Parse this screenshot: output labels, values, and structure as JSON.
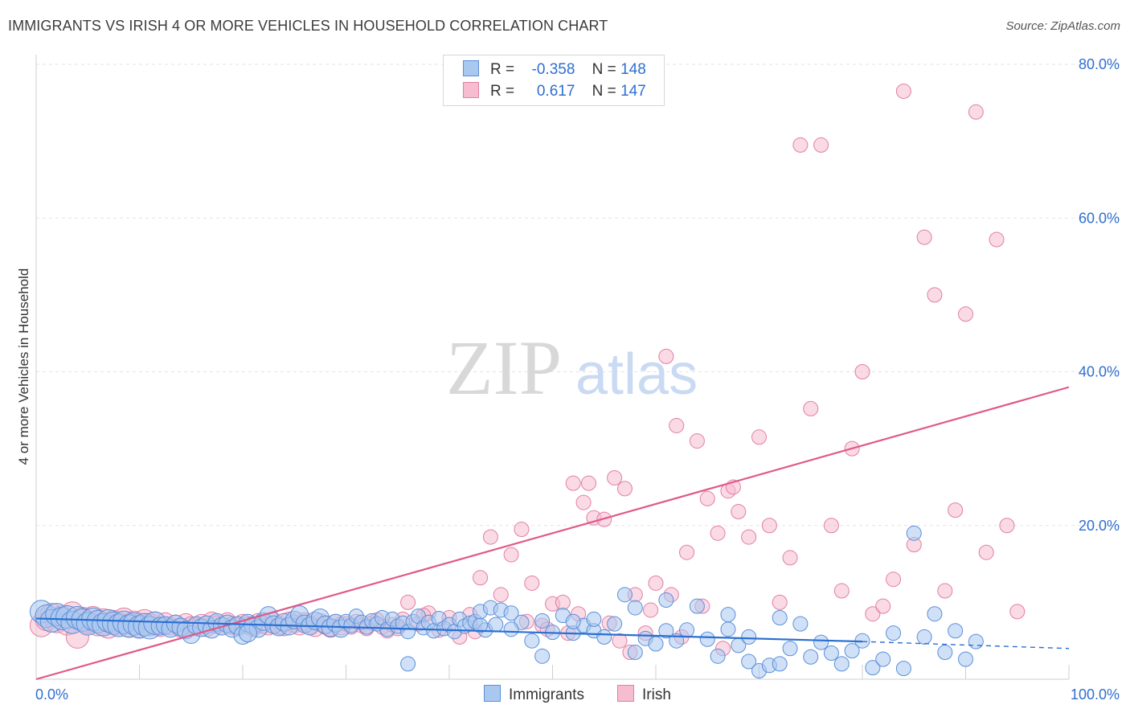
{
  "title": "IMMIGRANTS VS IRISH 4 OR MORE VEHICLES IN HOUSEHOLD CORRELATION CHART",
  "source": "Source: ZipAtlas.com",
  "watermark": {
    "zip": "ZIP",
    "atlas": "atlas"
  },
  "legend": {
    "rows": [
      {
        "r_label": "R =",
        "r_value": "-0.358",
        "n_label": "N =",
        "n_value": "148"
      },
      {
        "r_label": "R =",
        "r_value": "0.617",
        "n_label": "N =",
        "n_value": "147"
      }
    ]
  },
  "bottom_legend": {
    "immigrants": "Immigrants",
    "irish": "Irish"
  },
  "colors": {
    "immigrants_fill": "#a9c8f0",
    "immigrants_stroke": "#5b8fd8",
    "immigrants_line": "#2a6fd0",
    "irish_fill": "#f6bcd0",
    "irish_stroke": "#e27fa3",
    "irish_line": "#e0588a",
    "tick": "#2f6fd0",
    "grid": "#e3e3e3"
  },
  "chart_data": {
    "type": "scatter",
    "title": "IMMIGRANTS VS IRISH 4 OR MORE VEHICLES IN HOUSEHOLD CORRELATION CHART",
    "xlabel": "",
    "ylabel": "4 or more Vehicles in Household",
    "xlim": [
      0,
      100
    ],
    "ylim": [
      0,
      80
    ],
    "x_tick_labels": [
      "0.0%",
      "100.0%"
    ],
    "y_ticks": [
      20,
      40,
      60,
      80
    ],
    "y_tick_labels": [
      "20.0%",
      "40.0%",
      "60.0%",
      "80.0%"
    ],
    "grid": true,
    "series": [
      {
        "name": "Immigrants",
        "r": -0.358,
        "n": 148,
        "trend": {
          "x0": 0,
          "y0": 7.9,
          "x1": 80,
          "y1": 4.9,
          "dashed_to_x": 100,
          "dashed_to_y": 4.0
        },
        "points": [
          [
            0.5,
            8.8
          ],
          [
            1,
            8.2
          ],
          [
            1.5,
            7.6
          ],
          [
            2,
            8.4
          ],
          [
            2.5,
            7.9
          ],
          [
            3,
            8.1
          ],
          [
            3.5,
            7.4
          ],
          [
            4,
            8.0
          ],
          [
            4.5,
            7.7
          ],
          [
            5,
            7.2
          ],
          [
            5.5,
            7.8
          ],
          [
            6,
            7.5
          ],
          [
            6.5,
            7.1
          ],
          [
            7,
            7.6
          ],
          [
            7.5,
            7.3
          ],
          [
            8,
            7.0
          ],
          [
            8.5,
            7.4
          ],
          [
            9,
            6.9
          ],
          [
            9.5,
            7.2
          ],
          [
            10,
            6.8
          ],
          [
            10.5,
            7.1
          ],
          [
            11,
            6.7
          ],
          [
            11.5,
            7.3
          ],
          [
            12,
            6.9
          ],
          [
            12.5,
            7.0
          ],
          [
            13,
            6.6
          ],
          [
            13.5,
            7.2
          ],
          [
            14,
            6.8
          ],
          [
            14.5,
            6.4
          ],
          [
            15,
            5.8
          ],
          [
            15.5,
            7.0
          ],
          [
            16,
            6.7
          ],
          [
            16.5,
            7.1
          ],
          [
            17,
            6.5
          ],
          [
            17.5,
            7.4
          ],
          [
            18,
            6.9
          ],
          [
            18.5,
            7.2
          ],
          [
            19,
            6.6
          ],
          [
            19.5,
            7.0
          ],
          [
            20,
            5.7
          ],
          [
            20.5,
            7.3
          ],
          [
            21,
            7.0
          ],
          [
            21.5,
            6.6
          ],
          [
            22,
            7.5
          ],
          [
            22.5,
            8.3
          ],
          [
            23,
            7.1
          ],
          [
            23.5,
            6.8
          ],
          [
            24,
            7.4
          ],
          [
            24.5,
            6.9
          ],
          [
            25,
            7.7
          ],
          [
            25.5,
            8.4
          ],
          [
            26,
            7.2
          ],
          [
            26.5,
            6.9
          ],
          [
            27,
            7.6
          ],
          [
            27.5,
            8.0
          ],
          [
            28,
            7.1
          ],
          [
            28.5,
            6.7
          ],
          [
            29,
            7.3
          ],
          [
            29.5,
            6.6
          ],
          [
            30,
            7.5
          ],
          [
            30.5,
            7.0
          ],
          [
            31,
            8.2
          ],
          [
            31.5,
            7.4
          ],
          [
            32,
            6.8
          ],
          [
            32.5,
            7.6
          ],
          [
            33,
            7.2
          ],
          [
            33.5,
            8.0
          ],
          [
            34,
            6.5
          ],
          [
            34.5,
            7.8
          ],
          [
            35,
            6.9
          ],
          [
            35.5,
            7.3
          ],
          [
            36,
            6.2
          ],
          [
            36.5,
            7.5
          ],
          [
            37,
            8.2
          ],
          [
            37.5,
            6.7
          ],
          [
            38,
            7.4
          ],
          [
            38.5,
            6.3
          ],
          [
            39,
            7.9
          ],
          [
            39.5,
            6.6
          ],
          [
            40,
            7.1
          ],
          [
            40.5,
            6.2
          ],
          [
            41,
            7.8
          ],
          [
            41.5,
            6.9
          ],
          [
            42,
            7.3
          ],
          [
            42.5,
            7.5
          ],
          [
            43,
            8.8
          ],
          [
            43.5,
            6.4
          ],
          [
            44,
            9.3
          ],
          [
            44.5,
            7.1
          ],
          [
            45,
            9.0
          ],
          [
            46,
            8.6
          ],
          [
            47,
            7.4
          ],
          [
            48,
            5.0
          ],
          [
            49,
            7.6
          ],
          [
            50,
            6.1
          ],
          [
            51,
            8.3
          ],
          [
            52,
            6.0
          ],
          [
            53,
            7.0
          ],
          [
            54,
            6.3
          ],
          [
            55,
            5.5
          ],
          [
            56,
            7.2
          ],
          [
            57,
            11.0
          ],
          [
            58,
            9.3
          ],
          [
            59,
            5.3
          ],
          [
            60,
            4.6
          ],
          [
            61,
            10.3
          ],
          [
            62,
            5.0
          ],
          [
            63,
            6.4
          ],
          [
            64,
            9.5
          ],
          [
            65,
            5.2
          ],
          [
            66,
            3.0
          ],
          [
            67,
            8.4
          ],
          [
            68,
            4.4
          ],
          [
            69,
            2.3
          ],
          [
            70,
            1.1
          ],
          [
            71,
            1.8
          ],
          [
            72,
            2.0
          ],
          [
            73,
            4.0
          ],
          [
            74,
            7.2
          ],
          [
            75,
            2.9
          ],
          [
            76,
            4.8
          ],
          [
            77,
            3.4
          ],
          [
            78,
            2.0
          ],
          [
            79,
            3.7
          ],
          [
            80,
            5.0
          ],
          [
            81,
            1.5
          ],
          [
            82,
            2.6
          ],
          [
            83,
            6.0
          ],
          [
            84,
            1.4
          ],
          [
            85,
            19.0
          ],
          [
            86,
            5.5
          ],
          [
            87,
            8.5
          ],
          [
            88,
            3.5
          ],
          [
            89,
            6.3
          ],
          [
            90,
            2.6
          ],
          [
            91,
            4.9
          ],
          [
            20.5,
            6.0
          ],
          [
            36,
            2.0
          ],
          [
            49,
            3.0
          ],
          [
            58,
            3.5
          ],
          [
            61,
            6.3
          ],
          [
            67,
            6.5
          ],
          [
            69,
            5.5
          ],
          [
            72,
            8.0
          ],
          [
            54,
            7.8
          ],
          [
            52,
            7.5
          ],
          [
            46,
            6.5
          ],
          [
            43,
            7.0
          ]
        ]
      },
      {
        "name": "Irish",
        "r": 0.617,
        "n": 147,
        "trend": {
          "x0": 0,
          "y0": 0.0,
          "x1": 100,
          "y1": 38.0
        },
        "points": [
          [
            0.5,
            7.0
          ],
          [
            1,
            7.8
          ],
          [
            1.5,
            8.4
          ],
          [
            2,
            7.5
          ],
          [
            2.5,
            8.1
          ],
          [
            3,
            7.2
          ],
          [
            3.5,
            8.6
          ],
          [
            4,
            5.5
          ],
          [
            4.5,
            7.9
          ],
          [
            5,
            7.4
          ],
          [
            5.5,
            8.0
          ],
          [
            6,
            7.1
          ],
          [
            6.5,
            7.7
          ],
          [
            7,
            6.8
          ],
          [
            7.5,
            7.5
          ],
          [
            8,
            7.2
          ],
          [
            8.5,
            7.8
          ],
          [
            9,
            7.0
          ],
          [
            9.5,
            7.4
          ],
          [
            10,
            6.9
          ],
          [
            10.5,
            7.6
          ],
          [
            11,
            7.1
          ],
          [
            11.5,
            7.3
          ],
          [
            12,
            6.7
          ],
          [
            12.5,
            7.5
          ],
          [
            13,
            6.9
          ],
          [
            13.5,
            7.2
          ],
          [
            14,
            6.6
          ],
          [
            14.5,
            7.4
          ],
          [
            15,
            7.0
          ],
          [
            15.5,
            6.8
          ],
          [
            16,
            7.3
          ],
          [
            16.5,
            6.7
          ],
          [
            17,
            7.6
          ],
          [
            17.5,
            7.1
          ],
          [
            18,
            6.9
          ],
          [
            18.5,
            7.5
          ],
          [
            19,
            7.0
          ],
          [
            19.5,
            6.8
          ],
          [
            20,
            7.3
          ],
          [
            20.5,
            7.0
          ],
          [
            21,
            6.7
          ],
          [
            21.5,
            7.4
          ],
          [
            22,
            7.1
          ],
          [
            22.5,
            6.9
          ],
          [
            23,
            7.5
          ],
          [
            23.5,
            7.0
          ],
          [
            24,
            6.8
          ],
          [
            24.5,
            7.6
          ],
          [
            25,
            7.2
          ],
          [
            25.5,
            6.9
          ],
          [
            26,
            7.5
          ],
          [
            26.5,
            7.1
          ],
          [
            27,
            6.7
          ],
          [
            27.5,
            7.4
          ],
          [
            28,
            7.0
          ],
          [
            28.5,
            6.6
          ],
          [
            29,
            7.3
          ],
          [
            29.5,
            6.9
          ],
          [
            30,
            7.2
          ],
          [
            30.5,
            6.8
          ],
          [
            31,
            7.5
          ],
          [
            31.5,
            7.0
          ],
          [
            32,
            6.6
          ],
          [
            32.5,
            7.3
          ],
          [
            33,
            7.7
          ],
          [
            33.5,
            6.8
          ],
          [
            34,
            6.3
          ],
          [
            34.5,
            7.1
          ],
          [
            35,
            6.6
          ],
          [
            35.5,
            7.8
          ],
          [
            36,
            10.0
          ],
          [
            37,
            7.2
          ],
          [
            38,
            8.6
          ],
          [
            39,
            6.4
          ],
          [
            40,
            8.0
          ],
          [
            41,
            5.5
          ],
          [
            42,
            8.4
          ],
          [
            43,
            13.2
          ],
          [
            44,
            18.5
          ],
          [
            45,
            11.0
          ],
          [
            46,
            16.2
          ],
          [
            47,
            19.5
          ],
          [
            48,
            12.5
          ],
          [
            49,
            7.0
          ],
          [
            50,
            9.8
          ],
          [
            51,
            10.0
          ],
          [
            52,
            25.5
          ],
          [
            53,
            23.0
          ],
          [
            53.5,
            25.5
          ],
          [
            54,
            21.0
          ],
          [
            55,
            20.8
          ],
          [
            56,
            26.2
          ],
          [
            57,
            24.8
          ],
          [
            58,
            11.0
          ],
          [
            59,
            6.0
          ],
          [
            60,
            12.5
          ],
          [
            61,
            42.0
          ],
          [
            62,
            33.0
          ],
          [
            63,
            16.5
          ],
          [
            64,
            31.0
          ],
          [
            65,
            23.5
          ],
          [
            66,
            19.0
          ],
          [
            67,
            24.5
          ],
          [
            67.5,
            25.0
          ],
          [
            68,
            21.8
          ],
          [
            69,
            18.5
          ],
          [
            70,
            31.5
          ],
          [
            71,
            20.0
          ],
          [
            72,
            10.0
          ],
          [
            73,
            15.8
          ],
          [
            74,
            69.5
          ],
          [
            75,
            35.2
          ],
          [
            76,
            69.5
          ],
          [
            77,
            20.0
          ],
          [
            78,
            11.5
          ],
          [
            79,
            30.0
          ],
          [
            80,
            40.0
          ],
          [
            81,
            8.5
          ],
          [
            82,
            9.5
          ],
          [
            83,
            13.0
          ],
          [
            84,
            76.5
          ],
          [
            85,
            17.5
          ],
          [
            86,
            57.5
          ],
          [
            87,
            50.0
          ],
          [
            88,
            11.5
          ],
          [
            89,
            22.0
          ],
          [
            90,
            47.5
          ],
          [
            91,
            73.8
          ],
          [
            92,
            16.5
          ],
          [
            93,
            57.2
          ],
          [
            94,
            20.0
          ],
          [
            95,
            8.8
          ],
          [
            37.5,
            8.3
          ],
          [
            42.5,
            6.2
          ],
          [
            47.5,
            7.5
          ],
          [
            51.5,
            6.0
          ],
          [
            55.5,
            7.3
          ],
          [
            57.5,
            3.5
          ],
          [
            59.5,
            9.0
          ],
          [
            61.5,
            11.0
          ],
          [
            62.5,
            5.5
          ],
          [
            64.5,
            9.5
          ],
          [
            66.5,
            4.0
          ],
          [
            56.5,
            5.0
          ],
          [
            52.5,
            8.5
          ],
          [
            49.5,
            6.5
          ]
        ]
      }
    ]
  }
}
